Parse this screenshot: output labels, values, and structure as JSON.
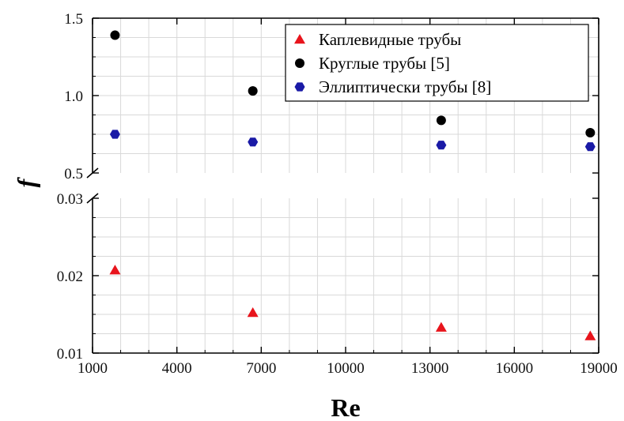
{
  "chart_data": {
    "type": "scatter",
    "xlabel": "Re",
    "ylabel": "f",
    "xlim": [
      1000,
      19000
    ],
    "x_ticks": [
      1000,
      4000,
      7000,
      10000,
      13000,
      16000,
      19000
    ],
    "x_tick_labels": [
      "1000",
      "4000",
      "7000",
      "10000",
      "13000",
      "16000",
      "19000"
    ],
    "broken_y_axis": true,
    "upper_panel": {
      "ylim": [
        0.5,
        1.5
      ],
      "y_ticks": [
        0.5,
        1.0,
        1.5
      ],
      "y_tick_labels": [
        "0.5",
        "1.0",
        "1.5"
      ]
    },
    "lower_panel": {
      "ylim": [
        0.01,
        0.03
      ],
      "y_ticks": [
        0.01,
        0.02,
        0.03
      ],
      "y_tick_labels": [
        "0.01",
        "0.02",
        "0.03"
      ]
    },
    "grid": true,
    "legend_position": "top-right",
    "series": [
      {
        "name": "Каплевидные трубы",
        "panel": "lower",
        "marker": "triangle",
        "color": "#e8141c",
        "x": [
          1800,
          6700,
          13400,
          18700
        ],
        "y": [
          0.0207,
          0.0152,
          0.0133,
          0.0122
        ]
      },
      {
        "name": "Круглые трубы [5]",
        "panel": "upper",
        "marker": "circle",
        "color": "#000000",
        "x": [
          1800,
          6700,
          13400,
          18700
        ],
        "y": [
          1.39,
          1.03,
          0.84,
          0.76
        ]
      },
      {
        "name": "Эллиптически трубы [8]",
        "panel": "upper",
        "marker": "hexagon",
        "color": "#1a1aa6",
        "x": [
          1800,
          6700,
          13400,
          18700
        ],
        "y": [
          0.75,
          0.7,
          0.68,
          0.67
        ]
      }
    ]
  }
}
